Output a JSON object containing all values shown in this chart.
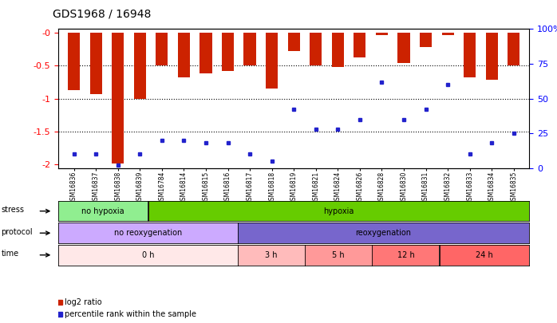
{
  "title": "GDS1968 / 16948",
  "samples": [
    "GSM16836",
    "GSM16837",
    "GSM16838",
    "GSM16839",
    "GSM16784",
    "GSM16814",
    "GSM16815",
    "GSM16816",
    "GSM16817",
    "GSM16818",
    "GSM16819",
    "GSM16821",
    "GSM16824",
    "GSM16826",
    "GSM16828",
    "GSM16830",
    "GSM16831",
    "GSM16832",
    "GSM16833",
    "GSM16834",
    "GSM16835"
  ],
  "log2_ratio": [
    -0.87,
    -0.93,
    -1.98,
    -1.0,
    -0.5,
    -0.68,
    -0.62,
    -0.58,
    -0.5,
    -0.85,
    -0.28,
    -0.5,
    -0.52,
    -0.38,
    -0.04,
    -0.46,
    -0.22,
    -0.04,
    -0.68,
    -0.72,
    -0.5
  ],
  "percentile": [
    10,
    10,
    2,
    10,
    20,
    20,
    18,
    18,
    10,
    5,
    42,
    28,
    28,
    35,
    62,
    35,
    42,
    60,
    10,
    18,
    25
  ],
  "stress_groups": [
    {
      "label": "no hypoxia",
      "start": 0,
      "end": 4,
      "color": "#90EE90"
    },
    {
      "label": "hypoxia",
      "start": 4,
      "end": 21,
      "color": "#66CC00"
    }
  ],
  "protocol_groups": [
    {
      "label": "no reoxygenation",
      "start": 0,
      "end": 8,
      "color": "#CCAAFF"
    },
    {
      "label": "reoxygenation",
      "start": 8,
      "end": 21,
      "color": "#7766CC"
    }
  ],
  "time_groups": [
    {
      "label": "0 h",
      "start": 0,
      "end": 8,
      "color": "#FFE8E8"
    },
    {
      "label": "3 h",
      "start": 8,
      "end": 11,
      "color": "#FFBBBB"
    },
    {
      "label": "5 h",
      "start": 11,
      "end": 14,
      "color": "#FF9999"
    },
    {
      "label": "12 h",
      "start": 14,
      "end": 17,
      "color": "#FF7777"
    },
    {
      "label": "24 h",
      "start": 17,
      "end": 21,
      "color": "#FF6666"
    }
  ],
  "bar_color": "#CC2200",
  "marker_color": "#2222CC",
  "ylim_left": [
    -2.05,
    0.05
  ],
  "yticks_left": [
    0,
    -0.5,
    -1.0,
    -1.5,
    -2.0
  ],
  "ytick_labels_left": [
    "-0",
    "-0.5",
    "-1",
    "-1.5",
    "-2"
  ],
  "yticks_right_pct": [
    0,
    25,
    50,
    75,
    100
  ],
  "ytick_labels_right": [
    "0",
    "25",
    "50",
    "75",
    "100%"
  ],
  "pct_min": 0,
  "pct_max": 100,
  "bar_width": 0.55,
  "marker_size": 3.5
}
